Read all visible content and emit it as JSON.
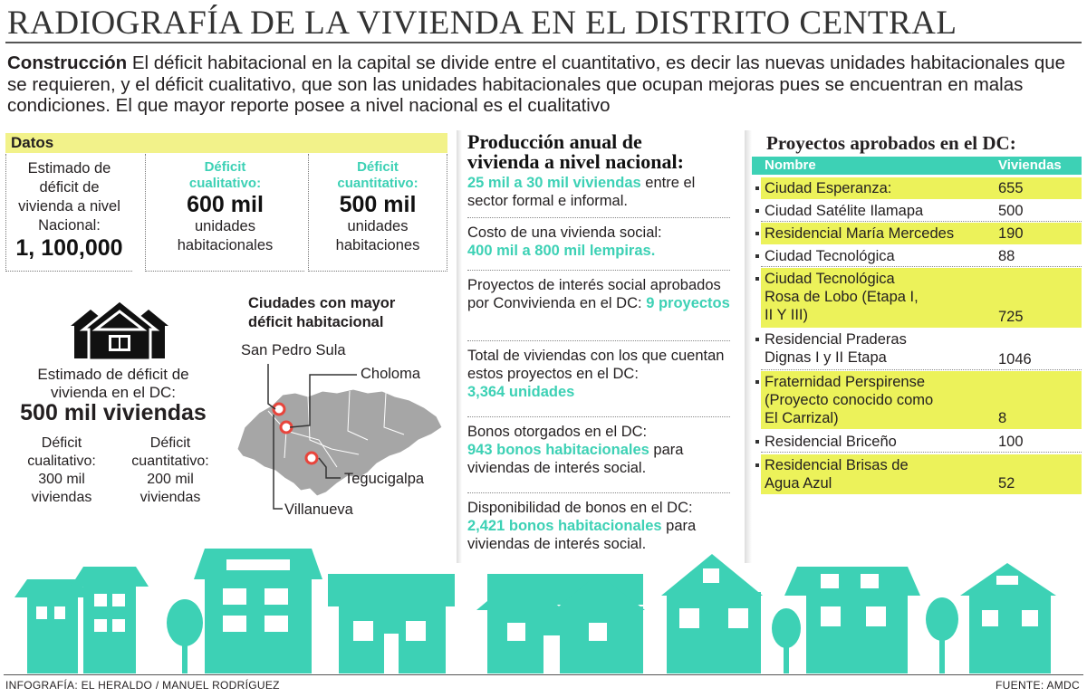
{
  "title": "RADIOGRAFÍA DE LA VIVIENDA EN EL DISTRITO CENTRAL",
  "intro": {
    "lead": "Construcción",
    "text": " El  déficit habitacional en la capital se divide entre el  cuantitativo, es decir  las nuevas unidades habitacionales que se requieren, y el déficit cualitativo, que son las unidades habitacionales  que ocupan mejoras  pues se encuentran en malas condiciones. El que mayor reporte posee a nivel nacional es el cualitativo"
  },
  "datos": {
    "header": "Datos",
    "national": {
      "label1": "Estimado de",
      "label2": "déficit de",
      "label3": "vivienda a nivel",
      "label4": "Nacional:",
      "value": "1, 100,000"
    },
    "qualitative": {
      "label1": "Déficit",
      "label2": "cualitativo:",
      "value": "600 mil",
      "unit1": "unidades",
      "unit2": "habitacionales"
    },
    "quantitative": {
      "label1": "Déficit",
      "label2": "cuantitativo:",
      "value": "500 mil",
      "unit1": "unidades",
      "unit2": "habitaciones"
    }
  },
  "dc": {
    "label1": "Estimado de déficit de",
    "label2": "vivienda  en el DC:",
    "value": "500 mil  viviendas",
    "qual": {
      "l1": "Déficit",
      "l2": "cualitativo:",
      "l3": "300 mil",
      "l4": "viviendas"
    },
    "quant": {
      "l1": "Déficit",
      "l2": "cuantitativo:",
      "l3": "200  mil",
      "l4": "viviendas"
    }
  },
  "cities": {
    "title1": "Ciudades con mayor",
    "title2": "déficit habitacional",
    "names": [
      "San Pedro Sula",
      "Choloma",
      "Tegucigalpa",
      "Villanueva"
    ]
  },
  "production": {
    "title1": "Producción anual de",
    "title2": "vivienda a nivel nacional:",
    "items": [
      {
        "highlight": "25 mil a 30 mil  viviendas",
        "rest": " entre el sector formal e informal."
      },
      {
        "pre": "Costo de una vivienda social:",
        "highlight": "400 mil a 800 mil lempiras."
      },
      {
        "pre": "Proyectos de interés social aprobados por Convivienda en el DC: ",
        "highlight": "9 proyectos"
      },
      {
        "pre": "Total de viviendas con los que cuentan estos proyectos en el DC:",
        "highlight": "3,364 unidades"
      },
      {
        "pre": "Bonos otorgados en el DC:",
        "highlight": "943 bonos habitacionales",
        "rest": " para viviendas de interés social."
      },
      {
        "pre": "Disponibilidad de bonos en el DC:",
        "highlight": "2,421 bonos habitacionales",
        "rest": " para viviendas de interés social."
      }
    ]
  },
  "projects": {
    "title": "Proyectos aprobados en el DC:",
    "col_name": "Nombre",
    "col_value": "Viviendas",
    "rows": [
      {
        "name": "Ciudad Esperanza:",
        "value": "655"
      },
      {
        "name": "Ciudad Satélite Ilamapa",
        "value": "500"
      },
      {
        "name": "Residencial María Mercedes",
        "value": "190"
      },
      {
        "name": "Ciudad Tecnológica",
        "value": "88"
      },
      {
        "name": "Ciudad Tecnológica Rosa de Lobo (Etapa I, II Y III)",
        "value": "725"
      },
      {
        "name": "Residencial Praderas Dignas I y II Etapa",
        "value": "1046"
      },
      {
        "name": "Fraternidad Perspirense (Proyecto conocido como El Carrizal)",
        "value": "8"
      },
      {
        "name": "Residencial Briceño",
        "value": "100"
      },
      {
        "name": "Residencial Brisas de Agua Azul",
        "value": "52"
      }
    ]
  },
  "footer": {
    "credit": "INFOGRAFÍA: EL HERALDO / MANUEL RODRÍGUEZ",
    "source": "FUENTE: AMDC"
  },
  "colors": {
    "teal": "#3dd1b5",
    "yellow": "#ecf25a",
    "datos_yellow": "#f2f28a",
    "map_gray": "#a6a6a6"
  }
}
